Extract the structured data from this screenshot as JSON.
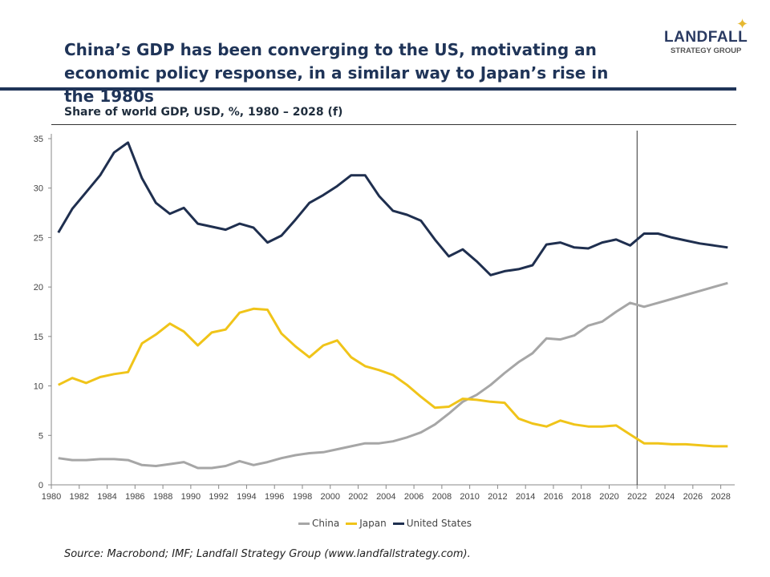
{
  "header": {
    "title": "China’s GDP has been converging to the US, motivating an economic policy response, in a similar way to Japan’s rise in the 1980s",
    "logo_line1": "LANDFALL",
    "logo_line2": "STRATEGY GROUP"
  },
  "source": {
    "prefix": "Source: Macrobond; IMF; Landfall Strategy Group (",
    "link": "www.landfallstrategy.com",
    "suffix": ")."
  },
  "chart_data": {
    "type": "line",
    "title": "Share of world GDP, USD, %, 1980 – 2028 (f)",
    "xlabel": "",
    "ylabel": "",
    "xlim": [
      1980,
      2029
    ],
    "ylim": [
      0,
      35
    ],
    "yticks": [
      0,
      5,
      10,
      15,
      20,
      25,
      30,
      35
    ],
    "xticks": [
      1980,
      1982,
      1984,
      1986,
      1988,
      1990,
      1992,
      1994,
      1996,
      1998,
      2000,
      2002,
      2004,
      2006,
      2008,
      2010,
      2012,
      2014,
      2016,
      2018,
      2020,
      2022,
      2024,
      2026,
      2028
    ],
    "forecast_marker_year": 2022,
    "grid": false,
    "legend_position": "bottom",
    "x": [
      1980,
      1981,
      1982,
      1983,
      1984,
      1985,
      1986,
      1987,
      1988,
      1989,
      1990,
      1991,
      1992,
      1993,
      1994,
      1995,
      1996,
      1997,
      1998,
      1999,
      2000,
      2001,
      2002,
      2003,
      2004,
      2005,
      2006,
      2007,
      2008,
      2009,
      2010,
      2011,
      2012,
      2013,
      2014,
      2015,
      2016,
      2017,
      2018,
      2019,
      2020,
      2021,
      2022,
      2023,
      2024,
      2025,
      2026,
      2027,
      2028
    ],
    "series": [
      {
        "name": "China",
        "color": "#a6a6a6",
        "values": [
          2.7,
          2.5,
          2.5,
          2.6,
          2.6,
          2.5,
          2.0,
          1.9,
          2.1,
          2.3,
          1.7,
          1.7,
          1.9,
          2.4,
          2.0,
          2.3,
          2.7,
          3.0,
          3.2,
          3.3,
          3.6,
          3.9,
          4.2,
          4.2,
          4.4,
          4.8,
          5.3,
          6.1,
          7.2,
          8.4,
          9.1,
          10.1,
          11.3,
          12.4,
          13.3,
          14.8,
          14.7,
          15.1,
          16.1,
          16.5,
          17.5,
          18.4,
          18.0,
          18.4,
          18.8,
          19.2,
          19.6,
          20.0,
          20.4
        ]
      },
      {
        "name": "Japan",
        "color": "#f0c419",
        "values": [
          10.1,
          10.8,
          10.3,
          10.9,
          11.2,
          11.4,
          14.3,
          15.2,
          16.3,
          15.5,
          14.1,
          15.4,
          15.7,
          17.4,
          17.8,
          17.7,
          15.3,
          14.0,
          12.9,
          14.1,
          14.6,
          12.9,
          12.0,
          11.6,
          11.1,
          10.1,
          8.9,
          7.8,
          7.9,
          8.7,
          8.6,
          8.4,
          8.3,
          6.7,
          6.2,
          5.9,
          6.5,
          6.1,
          5.9,
          5.9,
          6.0,
          5.1,
          4.2,
          4.2,
          4.1,
          4.1,
          4.0,
          3.9,
          3.9
        ]
      },
      {
        "name": "United States",
        "color": "#1f2f4f",
        "values": [
          25.5,
          27.9,
          29.6,
          31.3,
          33.6,
          34.6,
          31.0,
          28.5,
          27.4,
          28.0,
          26.4,
          26.1,
          25.8,
          26.4,
          26.0,
          24.5,
          25.2,
          26.8,
          28.5,
          29.3,
          30.2,
          31.3,
          31.3,
          29.2,
          27.7,
          27.3,
          26.7,
          24.8,
          23.1,
          23.8,
          22.6,
          21.2,
          21.6,
          21.8,
          22.2,
          24.3,
          24.5,
          24.0,
          23.9,
          24.5,
          24.8,
          24.2,
          25.4,
          25.4,
          25.0,
          24.7,
          24.4,
          24.2,
          24.0
        ]
      }
    ]
  }
}
